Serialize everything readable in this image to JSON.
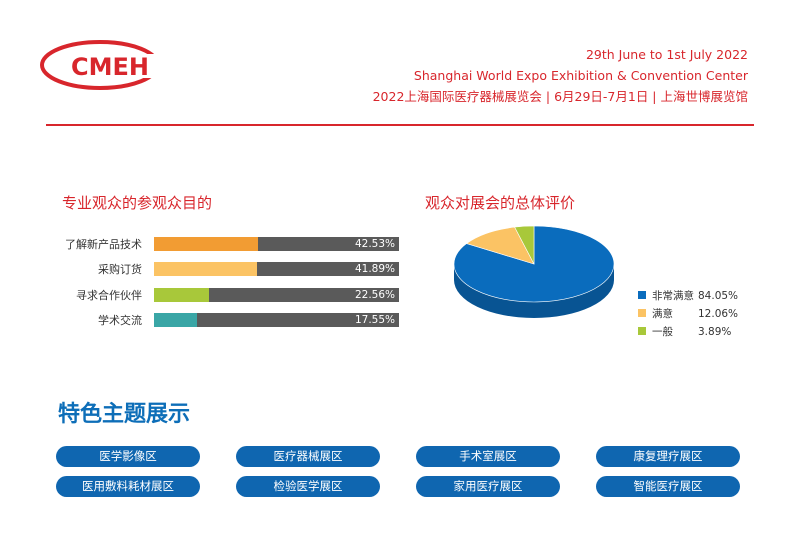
{
  "header": {
    "logo_text": "CMEH",
    "date_line": "29th June  to 1st July 2022",
    "venue_en": "Shanghai World Expo Exhibition & Convention Center",
    "venue_cn": "2022上海国际医疗器械展览会 | 6月29日-7月1日 | 上海世博展览馆"
  },
  "colors": {
    "brand_red": "#d8262c",
    "brand_blue": "#0f66b0",
    "bar_track": "#5a5a5a"
  },
  "chart_data": [
    {
      "type": "bar",
      "title": "专业观众的参观众目的",
      "categories": [
        "了解新产品技术",
        "采购订货",
        "寻求合作伙伴",
        "学术交流"
      ],
      "values": [
        42.53,
        41.89,
        22.56,
        17.55
      ],
      "value_labels": [
        "42.53%",
        "41.89%",
        "22.56%",
        "17.55%"
      ],
      "colors": [
        "#f29c33",
        "#fbc364",
        "#a8c83a",
        "#3aa6a6"
      ],
      "ylim": [
        0,
        100
      ]
    },
    {
      "type": "pie",
      "title": "观众对展会的总体评价",
      "categories": [
        "非常满意",
        "满意",
        "一般"
      ],
      "values": [
        84.05,
        12.06,
        3.89
      ],
      "value_labels": [
        "84.05%",
        "12.06%",
        "3.89%"
      ],
      "colors": [
        "#0a6cbd",
        "#fbc364",
        "#a8c83a"
      ],
      "legend": "right"
    }
  ],
  "features": {
    "title": "特色主题展示",
    "items": [
      "医学影像区",
      "医疗器械展区",
      "手术室展区",
      "康复理疗展区",
      "医用敷料耗材展区",
      "检验医学展区",
      "家用医疗展区",
      "智能医疗展区"
    ]
  }
}
